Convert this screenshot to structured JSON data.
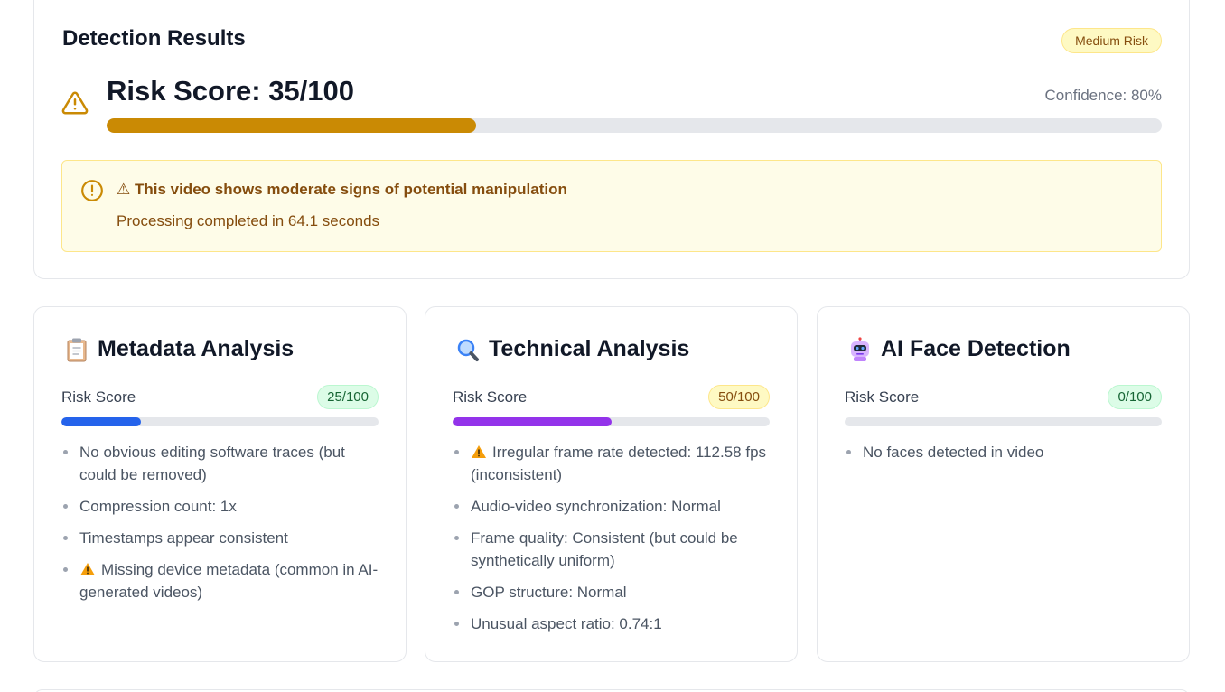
{
  "results": {
    "title": "Detection Results",
    "risk_level": "Medium Risk",
    "score_label": "Risk Score: 35/100",
    "score": 35,
    "score_max": 100,
    "confidence": "Confidence: 80%",
    "alert_title": "⚠ This video shows moderate signs of potential manipulation",
    "alert_subtitle": "Processing completed in 64.1 seconds",
    "colors": {
      "accent": "#ca8a04",
      "alert_bg": "#fefce8",
      "alert_text": "#854d0e"
    }
  },
  "cards": {
    "metadata": {
      "icon": "clipboard-icon",
      "title": "Metadata Analysis",
      "risk_label": "Risk Score",
      "risk_badge": "25/100",
      "risk_value": 25,
      "bar_color": "#2563eb",
      "items": [
        "No obvious editing software traces (but could be removed)",
        "Compression count: 1x",
        "Timestamps appear consistent",
        "Missing device metadata (common in AI-generated videos)"
      ]
    },
    "technical": {
      "icon": "magnifier-icon",
      "title": "Technical Analysis",
      "risk_label": "Risk Score",
      "risk_badge": "50/100",
      "risk_value": 50,
      "bar_color": "#9333ea",
      "items": [
        "Irregular frame rate detected: 112.58 fps (inconsistent)",
        "Audio-video synchronization: Normal",
        "Frame quality: Consistent (but could be synthetically uniform)",
        "GOP structure: Normal",
        "Unusual aspect ratio: 0.74:1"
      ]
    },
    "ai_face": {
      "icon": "robot-icon",
      "title": "AI Face Detection",
      "risk_label": "Risk Score",
      "risk_badge": "0/100",
      "risk_value": 0,
      "items": [
        "No faces detected in video"
      ]
    }
  }
}
